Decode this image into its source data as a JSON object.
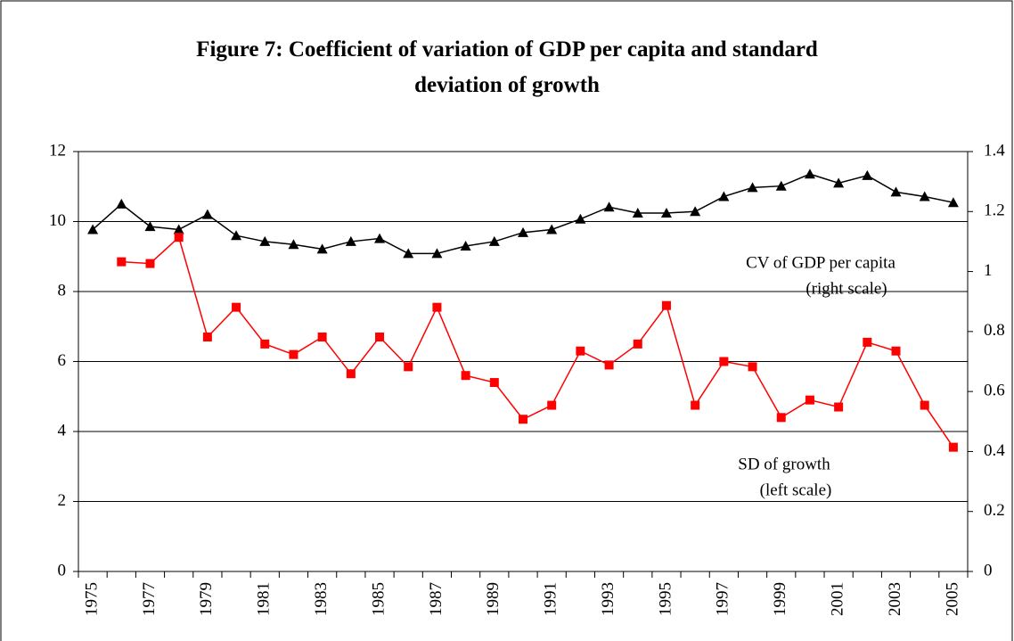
{
  "chart_data": {
    "type": "line",
    "title": "Figure 7: Coefficient of variation of GDP per capita and standard deviation of growth",
    "categories": [
      "1975",
      null,
      "1977",
      null,
      "1979",
      null,
      "1981",
      null,
      "1983",
      null,
      "1985",
      null,
      "1987",
      null,
      "1989",
      null,
      "1991",
      null,
      "1993",
      null,
      "1995",
      null,
      "1997",
      null,
      "1999",
      null,
      "2001",
      null,
      "2003",
      null,
      "2005"
    ],
    "series": [
      {
        "color": "#000000",
        "marker": "triangle",
        "axis": "y2",
        "values": [
          1.14,
          1.225,
          1.15,
          1.14,
          1.19,
          1.12,
          1.1,
          1.09,
          1.075,
          1.1,
          1.11,
          1.06,
          1.06,
          1.085,
          1.1,
          1.13,
          1.14,
          1.175,
          1.215,
          1.195,
          1.195,
          1.2,
          1.25,
          1.28,
          1.285,
          1.325,
          1.295,
          1.32,
          1.265,
          1.25,
          1.23
        ]
      },
      {
        "color": "#ff0000",
        "marker": "square",
        "values": [
          null,
          8.85,
          8.8,
          9.55,
          6.7,
          7.55,
          6.5,
          6.2,
          6.7,
          5.65,
          6.7,
          5.85,
          7.55,
          5.6,
          5.4,
          4.35,
          4.75,
          6.3,
          5.9,
          6.5,
          7.6,
          4.75,
          6.0,
          5.85,
          4.4,
          4.9,
          4.7,
          6.55,
          6.3,
          4.75,
          3.55
        ]
      }
    ],
    "annotations": [
      "CV of GDP per capita",
      "(right scale)",
      "SD of growth",
      "(left scale)"
    ],
    "ylim": [
      0,
      12
    ],
    "yticks": [
      0,
      2,
      4,
      6,
      8,
      10,
      12
    ],
    "y2lim": [
      0,
      1.4
    ],
    "y2ticks": [
      0,
      0.2,
      0.4,
      0.6,
      0.8,
      1,
      1.2,
      1.4
    ],
    "grid": true
  }
}
